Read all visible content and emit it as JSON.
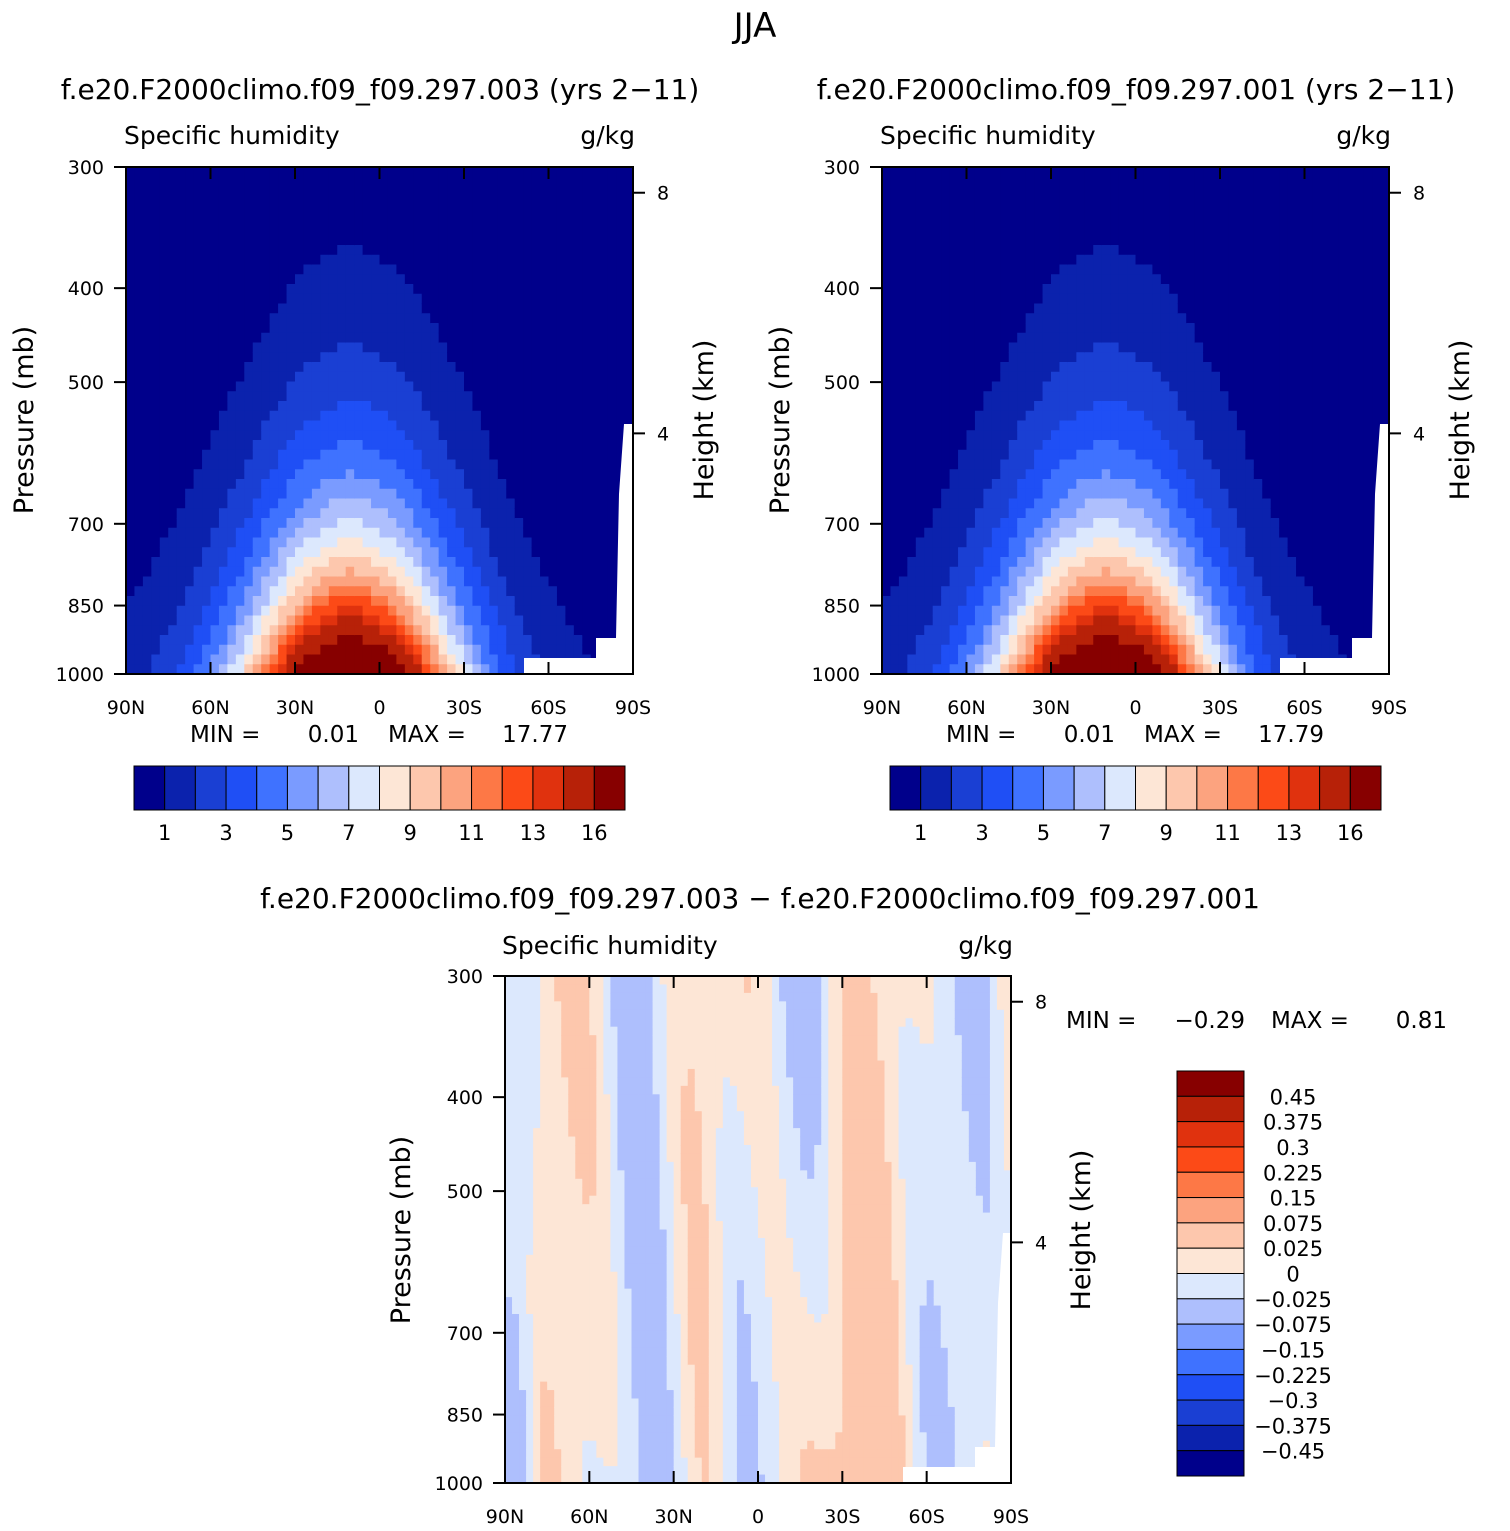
{
  "figure": {
    "title": "JJA",
    "panel_titles": [
      "f.e20.F2000climo.f09_f09.297.003 (yrs 2-11)",
      "f.e20.F2000climo.f09_f09.297.001 (yrs 2-11)"
    ],
    "diff_title": "f.e20.F2000climo.f09_f09.297.003 - f.e20.F2000climo.f09_f09.297.001"
  },
  "colors": {
    "top_levels": [
      "#00008b",
      "#0b22ad",
      "#1a3fd3",
      "#1f4ff5",
      "#3f72ff",
      "#7a9bff",
      "#aebffd",
      "#dce8fd",
      "#fde6d6",
      "#fdc7ad",
      "#fca37f",
      "#fd7846",
      "#fc4a17",
      "#e0320e",
      "#b72108",
      "#870000"
    ],
    "diff_levels": [
      "#00008b",
      "#0b22ad",
      "#1a3fd3",
      "#1f4ff5",
      "#3f72ff",
      "#7a9bff",
      "#aebffd",
      "#dce8fd",
      "#fde6d6",
      "#fdc7ad",
      "#fca37f",
      "#fd7846",
      "#fc4a17",
      "#e0320e",
      "#b72108",
      "#870000"
    ]
  },
  "chart_data": [
    {
      "type": "heatmap",
      "id": "panel-1",
      "title": "f.e20.F2000climo.f09_f09.297.003 (yrs 2-11)",
      "left_label": "Specific humidity",
      "right_label": "g/kg",
      "xlabel": "",
      "ylabel": "Pressure (mb)",
      "y2label": "Height (km)",
      "x_ticks": [
        "90N",
        "60N",
        "30N",
        "0",
        "30S",
        "60S",
        "90S"
      ],
      "x_range": [
        90,
        -90
      ],
      "y_ticks": [
        300,
        400,
        500,
        700,
        850,
        1000
      ],
      "y_range": [
        300,
        1000
      ],
      "y2_ticks": [
        8,
        4
      ],
      "min_label": "MIN =",
      "min_value": "0.01",
      "max_label": "MAX =",
      "max_value": "17.77",
      "colorbar_ticks": [
        "1",
        "3",
        "5",
        "7",
        "9",
        "11",
        "13",
        "16"
      ],
      "colorbar_levels": 16
    },
    {
      "type": "heatmap",
      "id": "panel-2",
      "title": "f.e20.F2000climo.f09_f09.297.001 (yrs 2-11)",
      "left_label": "Specific humidity",
      "right_label": "g/kg",
      "xlabel": "",
      "ylabel": "Pressure (mb)",
      "y2label": "Height (km)",
      "x_ticks": [
        "90N",
        "60N",
        "30N",
        "0",
        "30S",
        "60S",
        "90S"
      ],
      "x_range": [
        90,
        -90
      ],
      "y_ticks": [
        300,
        400,
        500,
        700,
        850,
        1000
      ],
      "y_range": [
        300,
        1000
      ],
      "y2_ticks": [
        8,
        4
      ],
      "min_label": "MIN =",
      "min_value": "0.01",
      "max_label": "MAX =",
      "max_value": "17.79",
      "colorbar_ticks": [
        "1",
        "3",
        "5",
        "7",
        "9",
        "11",
        "13",
        "16"
      ],
      "colorbar_levels": 16
    },
    {
      "type": "heatmap",
      "id": "panel-diff",
      "title": "f.e20.F2000climo.f09_f09.297.003 - f.e20.F2000climo.f09_f09.297.001",
      "left_label": "Specific humidity",
      "right_label": "g/kg",
      "xlabel": "",
      "ylabel": "Pressure (mb)",
      "y2label": "Height (km)",
      "x_ticks": [
        "90N",
        "60N",
        "30N",
        "0",
        "30S",
        "60S",
        "90S"
      ],
      "x_range": [
        90,
        -90
      ],
      "y_ticks": [
        300,
        400,
        500,
        700,
        850,
        1000
      ],
      "y_range": [
        300,
        1000
      ],
      "y2_ticks": [
        8,
        4
      ],
      "min_label": "MIN =",
      "min_value": "-0.29",
      "max_label": "MAX =",
      "max_value": "0.81",
      "colorbar_ticks": [
        "0.45",
        "0.375",
        "0.3",
        "0.225",
        "0.15",
        "0.075",
        "0.025",
        "0",
        "-0.025",
        "-0.075",
        "-0.15",
        "-0.225",
        "-0.3",
        "-0.375",
        "-0.45"
      ],
      "colorbar_levels": 16
    }
  ]
}
